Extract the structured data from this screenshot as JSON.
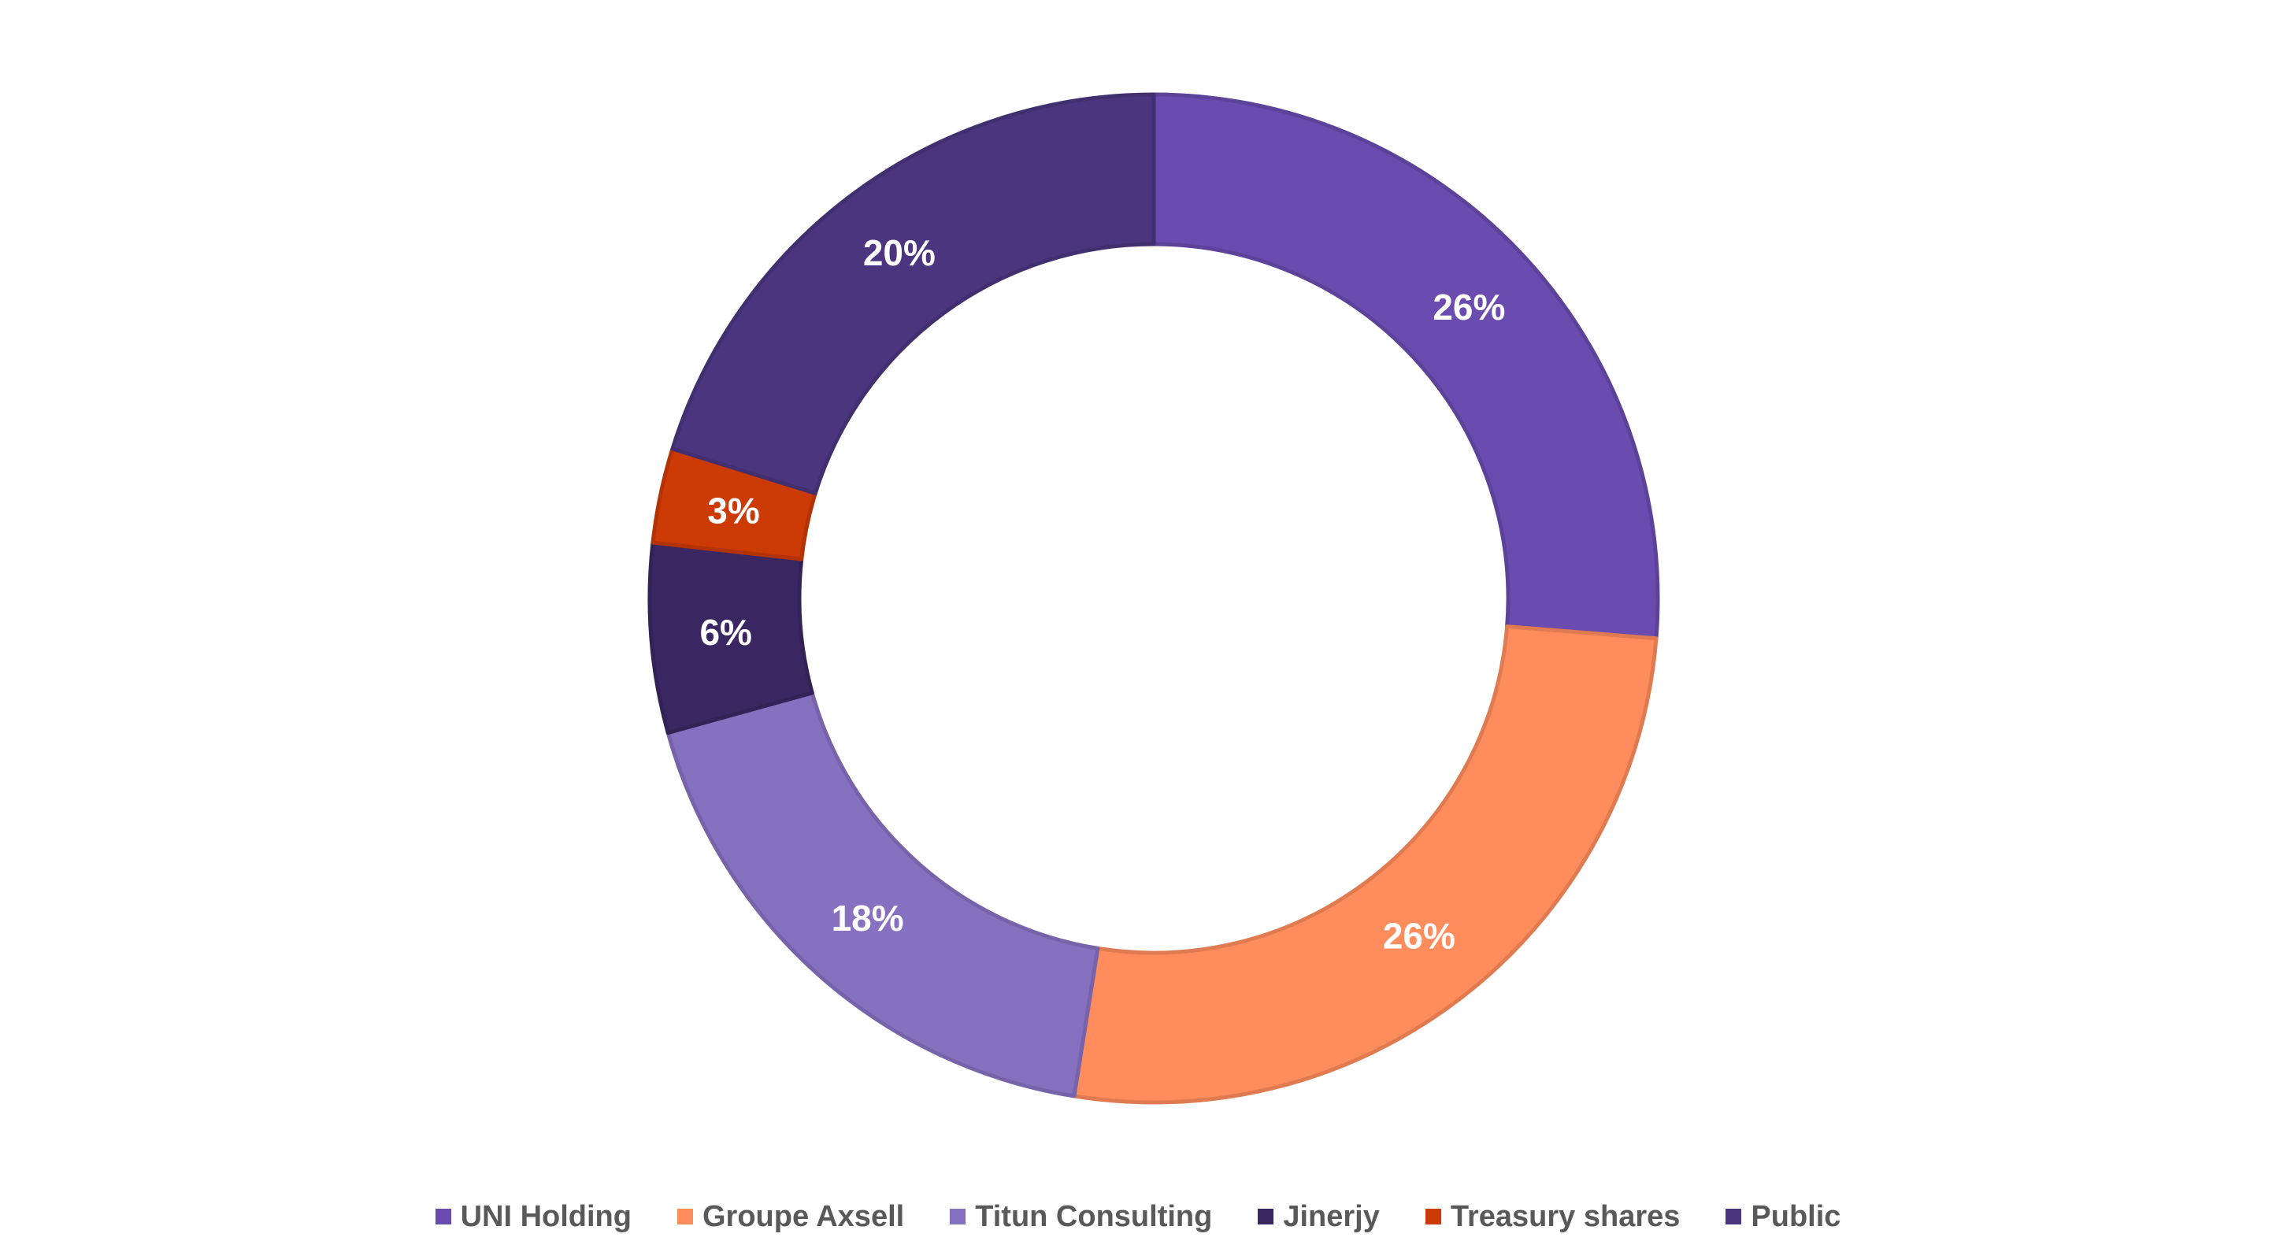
{
  "chart_data": {
    "type": "pie",
    "subtype": "donut",
    "title": "",
    "categories": [
      "UNI Holding",
      "Groupe Axsell",
      "Titun Consulting",
      "Jinerjy",
      "Treasury shares",
      "Public"
    ],
    "values": [
      26,
      26,
      18,
      6,
      3,
      20
    ],
    "value_labels": [
      "26%",
      "26%",
      "18%",
      "6%",
      "3%",
      "20%"
    ],
    "colors": [
      "#6A4BAF",
      "#FF8C5C",
      "#8670C0",
      "#3A2762",
      "#CC3A06",
      "#4B357F"
    ],
    "legend_position": "bottom",
    "start_angle": "12 o'clock",
    "direction": "clockwise"
  },
  "legend": {
    "items": [
      {
        "label": "UNI Holding",
        "color": "#6A4BAF"
      },
      {
        "label": "Groupe Axsell",
        "color": "#FF8C5C"
      },
      {
        "label": "Titun Consulting",
        "color": "#8670C0"
      },
      {
        "label": "Jinerjy",
        "color": "#3A2762"
      },
      {
        "label": "Treasury shares",
        "color": "#CC3A06"
      },
      {
        "label": "Public",
        "color": "#4B357F"
      }
    ]
  }
}
